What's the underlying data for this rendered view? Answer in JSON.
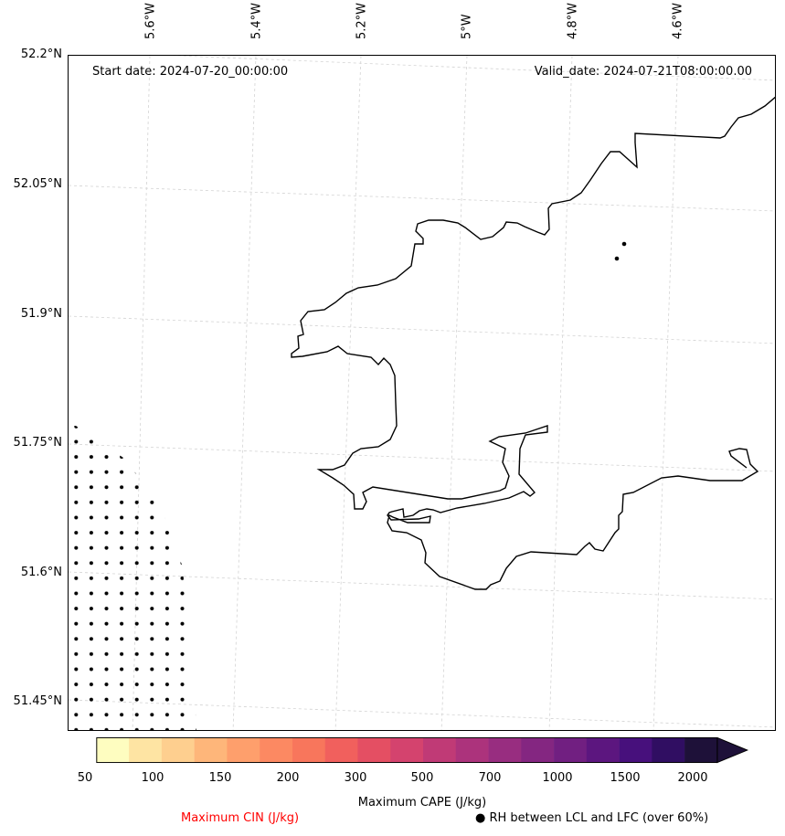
{
  "map": {
    "start_date": "Start date: 2024-07-20_00:00:00",
    "valid_date": "Valid_date: 2024-07-21T08:00:00.00",
    "longitude_labels": [
      "5.6°W",
      "5.4°W",
      "5.2°W",
      "5°W",
      "4.8°W",
      "4.6°W"
    ],
    "latitude_labels": [
      "52.2°N",
      "52.05°N",
      "51.9°N",
      "51.75°N",
      "51.6°N",
      "51.45°N"
    ],
    "gridline_color": "#d3d3d3",
    "coastline_color": "#000000"
  },
  "legend": {
    "colorbar_label": "Maximum CAPE (J/kg)",
    "colorbar_ticks": [
      "50",
      "100",
      "150",
      "200",
      "300",
      "500",
      "700",
      "1000",
      "1500",
      "2000"
    ],
    "colorbar_colors": [
      "#fefdc0",
      "#fee4a3",
      "#fecf8f",
      "#feb67a",
      "#fe9f6c",
      "#fc8962",
      "#f8765c",
      "#f1605d",
      "#e44f63",
      "#d4436e",
      "#c03a76",
      "#ac337c",
      "#982d80",
      "#842681",
      "#711f81",
      "#5c167f",
      "#47107c",
      "#300e62",
      "#1e1139"
    ],
    "extend": "max",
    "cin_label": "Maximum CIN (J/kg)",
    "cin_color": "#ff0000",
    "rh_label": "● RH between LCL and LFC (over 60%)"
  }
}
